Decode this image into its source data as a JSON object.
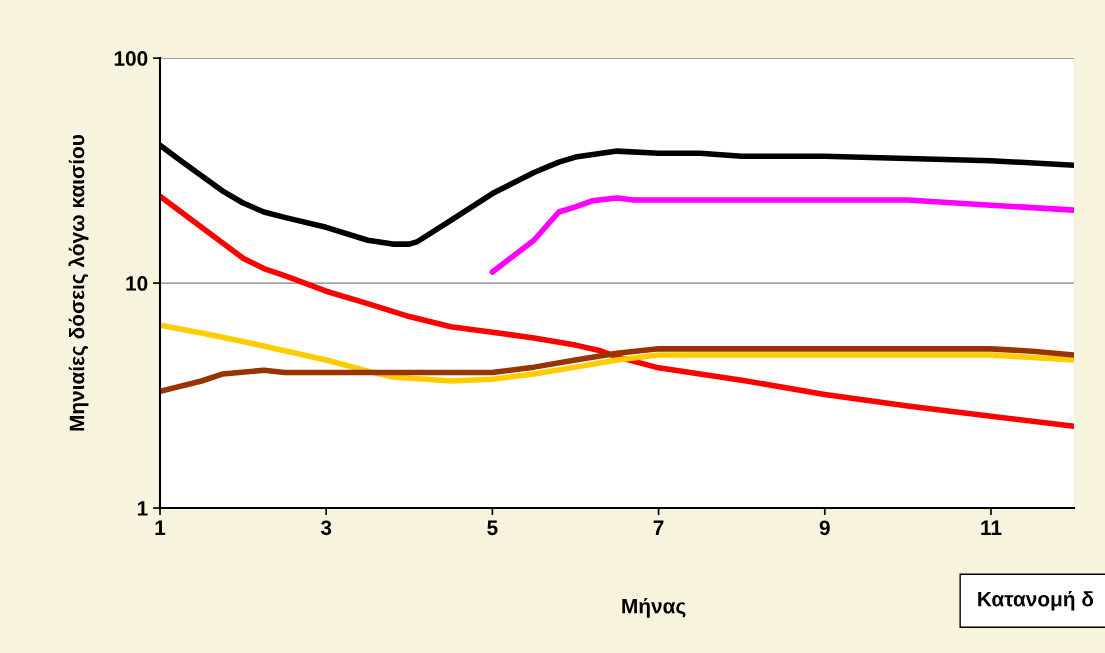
{
  "chart_data": {
    "type": "line",
    "xlabel": "Μήνας",
    "ylabel": "Μηνιαίες δόσεις λόγω καισίου",
    "log": "y",
    "grid": "y",
    "line_style": "solid",
    "marker": "none",
    "xlim": [
      1,
      12
    ],
    "xticks": [
      1,
      3,
      5,
      7,
      9,
      11
    ],
    "ylim": [
      1,
      100
    ],
    "yticks": [
      1,
      10,
      100
    ],
    "annotations": [
      "Κατανομή δ"
    ],
    "series": [
      {
        "color": "#000000",
        "x": [
          1,
          1.25,
          1.5,
          1.75,
          2,
          2.25,
          2.5,
          3,
          3.5,
          3.8,
          4,
          4.1,
          4.5,
          5,
          5.5,
          5.8,
          6,
          6.5,
          7,
          7.5,
          8,
          9,
          10,
          11,
          12
        ],
        "values": [
          41,
          35,
          30,
          25.7,
          22.7,
          20.7,
          19.6,
          17.7,
          15.5,
          14.9,
          14.9,
          15.3,
          19,
          25,
          31,
          34.5,
          36.3,
          38.6,
          37.8,
          37.8,
          36.6,
          36.6,
          35.8,
          35,
          33.4
        ]
      },
      {
        "color": "#ff00ff",
        "x": [
          5,
          5.5,
          5.8,
          6,
          6.2,
          6.5,
          6.7,
          7,
          8,
          9,
          10,
          11,
          12
        ],
        "values": [
          11.2,
          15.5,
          20.7,
          21.8,
          23.2,
          23.9,
          23.4,
          23.4,
          23.4,
          23.4,
          23.4,
          22.2,
          21.1
        ]
      },
      {
        "color": "#ff0000",
        "x": [
          1,
          1.5,
          2,
          2.25,
          2.5,
          3,
          3.5,
          4,
          4.5,
          5,
          5.5,
          6,
          6.3,
          6.5,
          7,
          8,
          9,
          10,
          11,
          12
        ],
        "values": [
          24.3,
          17.7,
          12.9,
          11.6,
          10.8,
          9.2,
          8.1,
          7.1,
          6.4,
          6.05,
          5.7,
          5.3,
          5.0,
          4.7,
          4.2,
          3.7,
          3.2,
          2.84,
          2.56,
          2.31
        ]
      },
      {
        "color": "#ffcc00",
        "x": [
          1,
          1.5,
          2,
          2.5,
          3,
          3.5,
          3.8,
          4.5,
          5,
          5.5,
          6,
          6.5,
          7,
          8,
          9,
          10,
          11,
          12
        ],
        "values": [
          6.5,
          6.0,
          5.5,
          5.0,
          4.55,
          4.06,
          3.82,
          3.67,
          3.74,
          3.94,
          4.23,
          4.55,
          4.79,
          4.79,
          4.79,
          4.79,
          4.79,
          4.55
        ]
      },
      {
        "color": "#993300",
        "x": [
          1,
          1.5,
          1.75,
          2.25,
          2.5,
          3,
          4,
          5,
          5.5,
          6,
          6.5,
          7,
          8,
          11,
          11.5,
          12
        ],
        "values": [
          3.3,
          3.67,
          3.94,
          4.1,
          4.0,
          4.0,
          4.0,
          4.0,
          4.23,
          4.55,
          4.88,
          5.1,
          5.1,
          5.1,
          4.98,
          4.79
        ]
      }
    ]
  }
}
